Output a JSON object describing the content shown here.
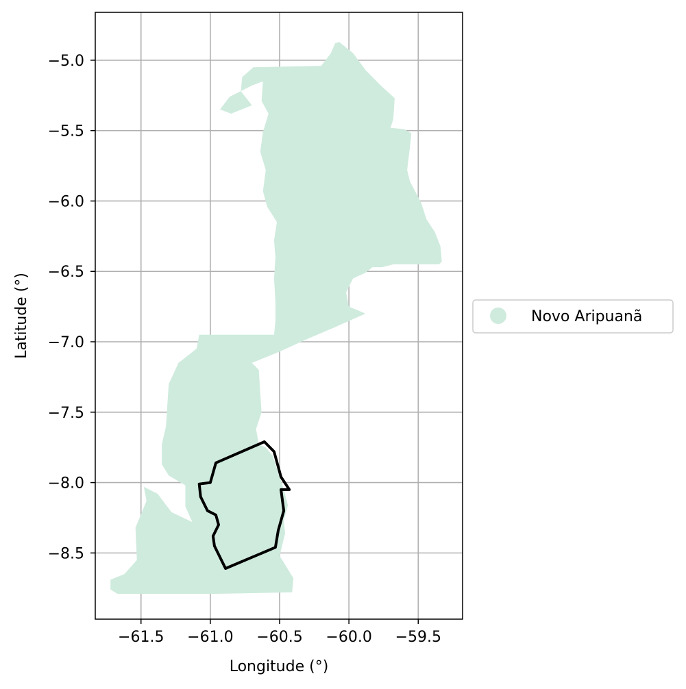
{
  "chart_data": {
    "type": "map",
    "xlabel": "Longitude (°)",
    "ylabel": "Latitude (°)",
    "xlim": [
      -61.83,
      -59.18
    ],
    "ylim": [
      -8.97,
      -4.66
    ],
    "x_ticks": [
      -61.5,
      -61.0,
      -60.5,
      -60.0,
      -59.5
    ],
    "x_tick_labels": [
      "−61.5",
      "−61.0",
      "−60.5",
      "−60.0",
      "−59.5"
    ],
    "y_ticks": [
      -5.0,
      -5.5,
      -6.0,
      -6.5,
      -7.0,
      -7.5,
      -8.0,
      -8.5
    ],
    "y_tick_labels": [
      "−5.0",
      "−5.5",
      "−6.0",
      "−6.5",
      "−7.0",
      "−7.5",
      "−8.0",
      "−8.5"
    ],
    "grid": true,
    "legend": {
      "placement": "right",
      "entries": [
        {
          "label": "Novo Aripuanã",
          "color": "#cfebde"
        }
      ]
    },
    "region": {
      "name": "Novo Aripuanã",
      "fill": "#cfebde",
      "outline": [
        [
          -60.07,
          -4.87
        ],
        [
          -59.97,
          -4.95
        ],
        [
          -59.88,
          -5.07
        ],
        [
          -59.77,
          -5.18
        ],
        [
          -59.67,
          -5.27
        ],
        [
          -59.68,
          -5.42
        ],
        [
          -59.7,
          -5.48
        ],
        [
          -59.6,
          -5.49
        ],
        [
          -59.55,
          -5.52
        ],
        [
          -59.56,
          -5.62
        ],
        [
          -59.58,
          -5.78
        ],
        [
          -59.56,
          -5.86
        ],
        [
          -59.48,
          -6.01
        ],
        [
          -59.44,
          -6.13
        ],
        [
          -59.38,
          -6.22
        ],
        [
          -59.34,
          -6.32
        ],
        [
          -59.33,
          -6.43
        ],
        [
          -59.35,
          -6.45
        ],
        [
          -59.68,
          -6.45
        ],
        [
          -59.76,
          -6.47
        ],
        [
          -59.83,
          -6.47
        ],
        [
          -59.88,
          -6.51
        ],
        [
          -59.97,
          -6.55
        ],
        [
          -60.02,
          -6.65
        ],
        [
          -60.0,
          -6.75
        ],
        [
          -59.88,
          -6.8
        ],
        [
          -60.11,
          -6.9
        ],
        [
          -60.3,
          -6.98
        ],
        [
          -60.5,
          -7.07
        ],
        [
          -60.7,
          -7.15
        ],
        [
          -60.65,
          -7.2
        ],
        [
          -60.64,
          -7.36
        ],
        [
          -60.63,
          -7.5
        ],
        [
          -60.67,
          -7.62
        ],
        [
          -60.65,
          -7.73
        ],
        [
          -60.6,
          -7.75
        ],
        [
          -60.55,
          -7.81
        ],
        [
          -60.51,
          -7.93
        ],
        [
          -60.47,
          -8.05
        ],
        [
          -60.44,
          -8.16
        ],
        [
          -60.47,
          -8.27
        ],
        [
          -60.46,
          -8.36
        ],
        [
          -60.5,
          -8.52
        ],
        [
          -60.45,
          -8.6
        ],
        [
          -60.4,
          -8.68
        ],
        [
          -60.41,
          -8.78
        ],
        [
          -60.95,
          -8.79
        ],
        [
          -61.5,
          -8.79
        ],
        [
          -61.67,
          -8.79
        ],
        [
          -61.72,
          -8.76
        ],
        [
          -61.72,
          -8.69
        ],
        [
          -61.62,
          -8.65
        ],
        [
          -61.53,
          -8.55
        ],
        [
          -61.54,
          -8.32
        ],
        [
          -61.46,
          -8.13
        ],
        [
          -61.48,
          -8.03
        ],
        [
          -61.38,
          -8.08
        ],
        [
          -61.28,
          -8.21
        ],
        [
          -61.13,
          -8.28
        ],
        [
          -61.18,
          -8.17
        ],
        [
          -61.18,
          -8.02
        ],
        [
          -61.3,
          -7.95
        ],
        [
          -61.35,
          -7.87
        ],
        [
          -61.35,
          -7.73
        ],
        [
          -61.32,
          -7.6
        ],
        [
          -61.31,
          -7.45
        ],
        [
          -61.3,
          -7.3
        ],
        [
          -61.23,
          -7.15
        ],
        [
          -61.1,
          -7.05
        ],
        [
          -61.08,
          -6.95
        ],
        [
          -60.54,
          -6.95
        ],
        [
          -60.53,
          -6.85
        ],
        [
          -60.53,
          -6.72
        ],
        [
          -60.54,
          -6.55
        ],
        [
          -60.53,
          -6.4
        ],
        [
          -60.54,
          -6.28
        ],
        [
          -60.52,
          -6.15
        ],
        [
          -60.59,
          -6.04
        ],
        [
          -60.62,
          -5.93
        ],
        [
          -60.6,
          -5.78
        ],
        [
          -60.64,
          -5.65
        ],
        [
          -60.62,
          -5.51
        ],
        [
          -60.58,
          -5.38
        ],
        [
          -60.63,
          -5.29
        ],
        [
          -60.62,
          -5.15
        ],
        [
          -60.7,
          -5.18
        ],
        [
          -60.86,
          -5.26
        ],
        [
          -60.93,
          -5.35
        ],
        [
          -60.85,
          -5.38
        ],
        [
          -60.7,
          -5.32
        ],
        [
          -60.78,
          -5.22
        ],
        [
          -60.77,
          -5.12
        ],
        [
          -60.69,
          -5.05
        ],
        [
          -60.2,
          -5.04
        ],
        [
          -60.13,
          -4.95
        ],
        [
          -60.1,
          -4.88
        ]
      ]
    },
    "boundary": {
      "color": "#000000",
      "outline": [
        [
          -60.61,
          -7.71
        ],
        [
          -60.96,
          -7.86
        ],
        [
          -61.0,
          -8.0
        ],
        [
          -61.08,
          -8.01
        ],
        [
          -61.07,
          -8.1
        ],
        [
          -61.02,
          -8.2
        ],
        [
          -60.96,
          -8.23
        ],
        [
          -60.94,
          -8.3
        ],
        [
          -60.98,
          -8.38
        ],
        [
          -60.97,
          -8.45
        ],
        [
          -60.89,
          -8.61
        ],
        [
          -60.53,
          -8.46
        ],
        [
          -60.51,
          -8.34
        ],
        [
          -60.47,
          -8.2
        ],
        [
          -60.49,
          -8.05
        ],
        [
          -60.43,
          -8.05
        ],
        [
          -60.49,
          -7.96
        ],
        [
          -60.54,
          -7.78
        ]
      ]
    }
  }
}
